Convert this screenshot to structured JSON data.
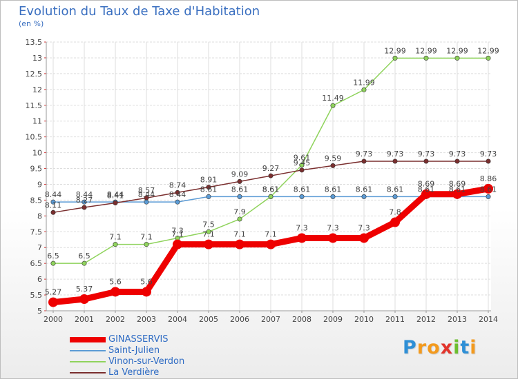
{
  "title": "Evolution du Taux de Taxe d'Habitation",
  "subtitle": "(en %)",
  "logo": {
    "letters": [
      "P",
      "r",
      "o",
      "x",
      "i",
      "t",
      "i"
    ],
    "colors": [
      "#2e8fd6",
      "#f39a1e",
      "#f39a1e",
      "#e2342c",
      "#6cbe2f",
      "#2e8fd6",
      "#f39a1e"
    ]
  },
  "chart_data": {
    "type": "line",
    "title": "Evolution du Taux de Taxe d'Habitation",
    "ylabel": "(en %)",
    "xlabel": "",
    "ylim": [
      5,
      13.5
    ],
    "ytick_step": 0.5,
    "yticks": [
      "5",
      "5.5",
      "6",
      "6.5",
      "7",
      "7.5",
      "8",
      "8.5",
      "9",
      "9.5",
      "10",
      "10.5",
      "11",
      "11.5",
      "12",
      "12.5",
      "13",
      "13.5"
    ],
    "grid": true,
    "legend_position": "bottom-left",
    "x": [
      "2000",
      "2001",
      "2002",
      "2003",
      "2004",
      "2005",
      "2006",
      "2007",
      "2008",
      "2009",
      "2010",
      "2011",
      "2012",
      "2013",
      "2014"
    ],
    "series": [
      {
        "name": "GINASSERVIS",
        "color": "#ee0000",
        "values": [
          5.27,
          5.37,
          5.6,
          5.6,
          7.1,
          7.1,
          7.1,
          7.1,
          7.3,
          7.3,
          7.3,
          7.8,
          8.69,
          8.69,
          8.86
        ],
        "labels": [
          "5.27",
          "5.37",
          "5.6",
          "5.6",
          "7.1",
          "7.1",
          "7.1",
          "7.1",
          "7.3",
          "7.3",
          "7.3",
          "7.8",
          "8.69",
          "8.69",
          "8.86"
        ]
      },
      {
        "name": "Saint-Julien",
        "color": "#5b9bd5",
        "values": [
          8.44,
          8.44,
          8.44,
          8.44,
          8.44,
          8.61,
          8.61,
          8.61,
          8.61,
          8.61,
          8.61,
          8.61,
          8.61,
          8.61,
          8.61
        ],
        "labels": [
          "8.44",
          "8.44",
          "8.44",
          "8.44",
          "8.44",
          "8.61",
          "8.61",
          "8.61",
          "8.61",
          "8.61",
          "8.61",
          "8.61",
          "8.61",
          "8.61",
          "8.61"
        ]
      },
      {
        "name": "Vinon-sur-Verdon",
        "color": "#8fd35c",
        "values": [
          6.5,
          6.5,
          7.1,
          7.1,
          7.3,
          7.5,
          7.9,
          8.61,
          9.61,
          11.49,
          11.99,
          12.99,
          12.99,
          12.99,
          12.99
        ],
        "labels": [
          "6.5",
          "6.5",
          "7.1",
          "7.1",
          "7.3",
          "7.5",
          "7.9",
          "8.61",
          "9.61",
          "11.49",
          "11.99",
          "12.99",
          "12.99",
          "12.99",
          "12.99"
        ]
      },
      {
        "name": "La Verdière",
        "color": "#7a2e2e",
        "values": [
          8.11,
          8.27,
          8.41,
          8.57,
          8.74,
          8.91,
          9.09,
          9.27,
          9.45,
          9.59,
          9.73,
          9.73,
          9.73,
          9.73,
          9.73
        ],
        "labels": [
          "8.11",
          "8.27",
          "8.41",
          "8.57",
          "8.74",
          "8.91",
          "9.09",
          "9.27",
          "9.45",
          "9.59",
          "9.73",
          "9.73",
          "9.73",
          "9.73",
          "9.73"
        ]
      }
    ]
  }
}
